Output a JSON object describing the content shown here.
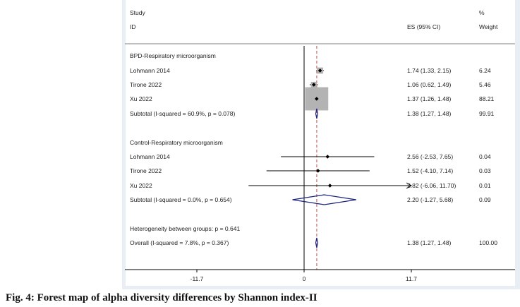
{
  "caption": "Fig. 4: Forest map of alpha diversity differences by Shannon index-II",
  "colors": {
    "panel_bg": "#ffffff",
    "outer_bg": "#e9eef5",
    "box": "#b3b3b3",
    "diamond": "#1a237e",
    "ref_line": "#c0504d",
    "text": "#222222"
  },
  "chart_data": {
    "type": "forest",
    "header": {
      "study": "Study",
      "id": "ID",
      "es": "ES (95% CI)",
      "pct": "%",
      "weight": "Weight"
    },
    "xaxis": {
      "ticks": [
        -11.7,
        0,
        11.7
      ],
      "tick_labels": [
        "-11.7",
        "0",
        "11.7"
      ],
      "null_value": 0,
      "overall_line": 1.38
    },
    "groups": [
      {
        "label": "BPD-Respiratory microorganism",
        "studies": [
          {
            "name": "Lohmann 2014",
            "es": 1.74,
            "lo": 1.33,
            "hi": 2.15,
            "es_text": "1.74 (1.33, 2.15)",
            "weight_text": "6.24",
            "weight": 6.24
          },
          {
            "name": "Tirone 2022",
            "es": 1.06,
            "lo": 0.62,
            "hi": 1.49,
            "es_text": "1.06 (0.62, 1.49)",
            "weight_text": "5.46",
            "weight": 5.46
          },
          {
            "name": "Xu 2022",
            "es": 1.37,
            "lo": 1.26,
            "hi": 1.48,
            "es_text": "1.37 (1.26, 1.48)",
            "weight_text": "88.21",
            "weight": 88.21
          }
        ],
        "subtotal": {
          "label": "Subtotal  (I-squared = 60.9%, p = 0.078)",
          "es": 1.38,
          "lo": 1.27,
          "hi": 1.48,
          "es_text": "1.38 (1.27, 1.48)",
          "weight_text": "99.91"
        }
      },
      {
        "label": "Control-Respiratory microorganism",
        "studies": [
          {
            "name": "Lohmann 2014",
            "es": 2.56,
            "lo": -2.53,
            "hi": 7.65,
            "es_text": "2.56 (-2.53, 7.65)",
            "weight_text": "0.04",
            "weight": 0.04
          },
          {
            "name": "Tirone 2022",
            "es": 1.52,
            "lo": -4.1,
            "hi": 7.14,
            "es_text": "1.52 (-4.10, 7.14)",
            "weight_text": "0.03",
            "weight": 0.03
          },
          {
            "name": "Xu 2022",
            "es": 2.82,
            "lo": -6.06,
            "hi": 11.7,
            "es_text": "2.82 (-6.06, 11.70)",
            "weight_text": "0.01",
            "weight": 0.01,
            "arrow_right": true
          }
        ],
        "subtotal": {
          "label": "Subtotal  (I-squared = 0.0%, p = 0.654)",
          "es": 2.2,
          "lo": -1.27,
          "hi": 5.68,
          "es_text": "2.20 (-1.27, 5.68)",
          "weight_text": "0.09"
        }
      }
    ],
    "heterogeneity": "Heterogeneity between groups: p = 0.641",
    "overall": {
      "label": "Overall  (I-squared = 7.8%, p = 0.367)",
      "es": 1.38,
      "lo": 1.27,
      "hi": 1.48,
      "es_text": "1.38 (1.27, 1.48)",
      "weight_text": "100.00"
    }
  }
}
